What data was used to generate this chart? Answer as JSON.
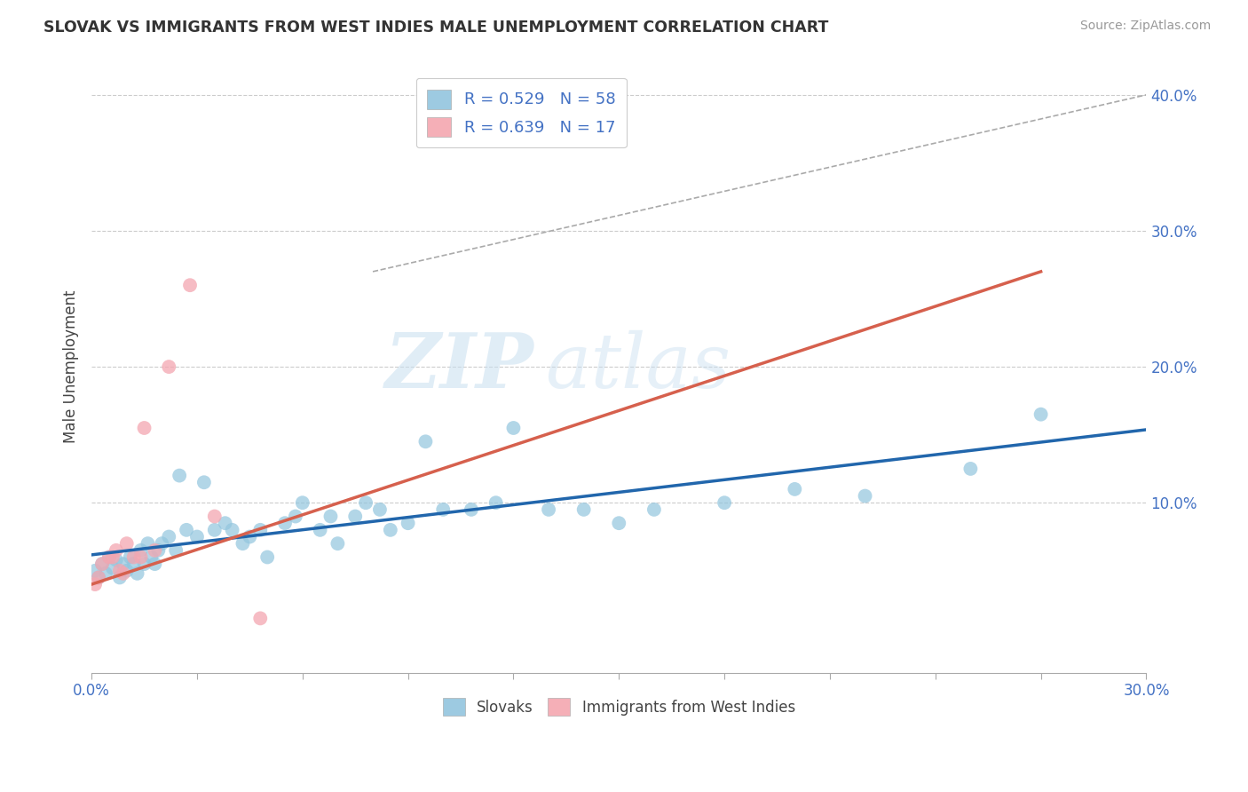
{
  "title": "SLOVAK VS IMMIGRANTS FROM WEST INDIES MALE UNEMPLOYMENT CORRELATION CHART",
  "source": "Source: ZipAtlas.com",
  "ylabel": "Male Unemployment",
  "ylabel_right_vals": [
    0.4,
    0.3,
    0.2,
    0.1
  ],
  "xmin": 0.0,
  "xmax": 0.3,
  "ymin": -0.025,
  "ymax": 0.425,
  "legend_blue_R": "0.529",
  "legend_blue_N": "58",
  "legend_pink_R": "0.639",
  "legend_pink_N": "17",
  "blue_color": "#92c5de",
  "pink_color": "#f4a6b0",
  "blue_line_color": "#2166ac",
  "pink_line_color": "#d6604d",
  "watermark_zip": "ZIP",
  "watermark_atlas": "atlas",
  "slovaks_x": [
    0.001,
    0.002,
    0.003,
    0.004,
    0.005,
    0.006,
    0.007,
    0.008,
    0.009,
    0.01,
    0.011,
    0.012,
    0.013,
    0.014,
    0.015,
    0.016,
    0.017,
    0.018,
    0.019,
    0.02,
    0.022,
    0.024,
    0.025,
    0.027,
    0.03,
    0.032,
    0.035,
    0.038,
    0.04,
    0.043,
    0.045,
    0.048,
    0.05,
    0.055,
    0.058,
    0.06,
    0.065,
    0.068,
    0.07,
    0.075,
    0.078,
    0.082,
    0.085,
    0.09,
    0.095,
    0.1,
    0.108,
    0.115,
    0.12,
    0.13,
    0.14,
    0.15,
    0.16,
    0.18,
    0.2,
    0.22,
    0.25,
    0.27
  ],
  "slovaks_y": [
    0.05,
    0.045,
    0.055,
    0.048,
    0.06,
    0.052,
    0.058,
    0.045,
    0.055,
    0.05,
    0.06,
    0.055,
    0.048,
    0.065,
    0.055,
    0.07,
    0.06,
    0.055,
    0.065,
    0.07,
    0.075,
    0.065,
    0.12,
    0.08,
    0.075,
    0.115,
    0.08,
    0.085,
    0.08,
    0.07,
    0.075,
    0.08,
    0.06,
    0.085,
    0.09,
    0.1,
    0.08,
    0.09,
    0.07,
    0.09,
    0.1,
    0.095,
    0.08,
    0.085,
    0.145,
    0.095,
    0.095,
    0.1,
    0.155,
    0.095,
    0.095,
    0.085,
    0.095,
    0.1,
    0.11,
    0.105,
    0.125,
    0.165
  ],
  "westindies_x": [
    0.001,
    0.002,
    0.003,
    0.005,
    0.006,
    0.007,
    0.008,
    0.009,
    0.01,
    0.012,
    0.014,
    0.015,
    0.018,
    0.022,
    0.028,
    0.035,
    0.048
  ],
  "westindies_y": [
    0.04,
    0.045,
    0.055,
    0.06,
    0.06,
    0.065,
    0.05,
    0.048,
    0.07,
    0.06,
    0.06,
    0.155,
    0.065,
    0.2,
    0.26,
    0.09,
    0.015
  ]
}
